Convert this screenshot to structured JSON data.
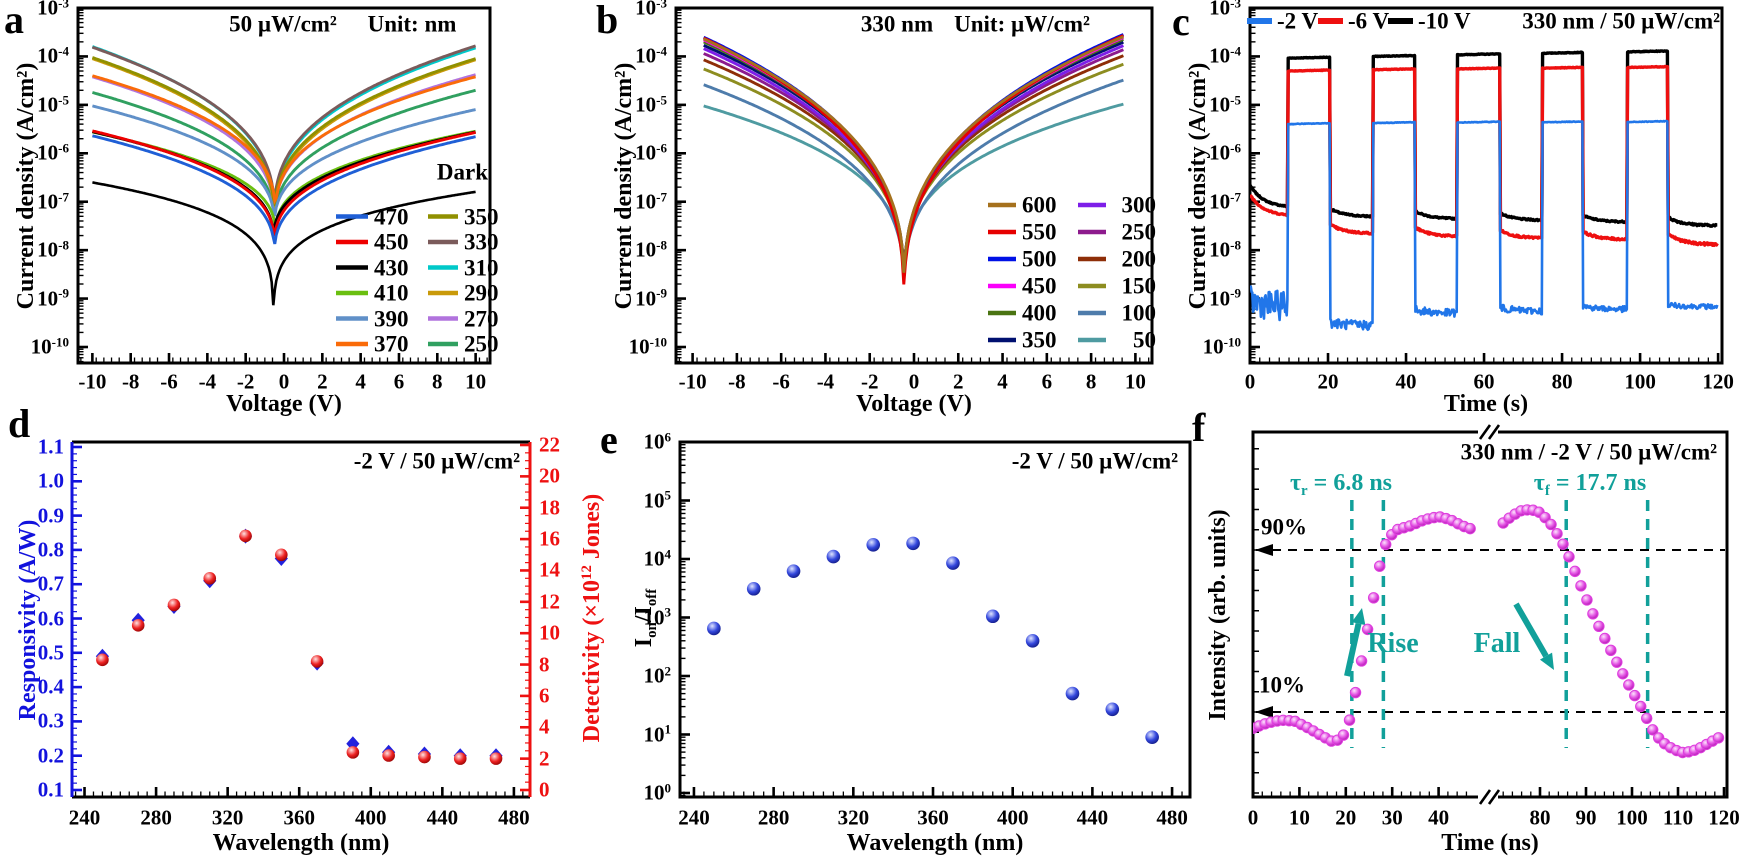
{
  "figure": {
    "bg": "#ffffff"
  },
  "chart_data": [
    {
      "id": "a",
      "type": "line-jv",
      "panel_label": "a",
      "title_power": "50 µW/cm²",
      "title_unit": "Unit: nm",
      "xlabel": "Voltage (V)",
      "ylabel": "Current density (A/cm²)",
      "x_ticks": [
        -10,
        -8,
        -6,
        -4,
        -2,
        0,
        2,
        4,
        6,
        8,
        10
      ],
      "y_exponents": [
        -3,
        -4,
        -5,
        -6,
        -7,
        -8,
        -9,
        -10
      ],
      "x_range": [
        -10,
        10
      ],
      "dark_label": "Dark",
      "series": [
        {
          "label": "470",
          "color": "#1f5fd6",
          "j_neg": 2.3e-06,
          "j_min": 8e-09,
          "j_pos": 2.2e-06,
          "v0": -0.5,
          "p": 0.38
        },
        {
          "label": "450",
          "color": "#ee0000",
          "j_neg": 2.9e-06,
          "j_min": 1.2e-08,
          "j_pos": 2.7e-06,
          "v0": -0.5,
          "p": 0.38
        },
        {
          "label": "430",
          "color": "#000000",
          "j_neg": 2.8e-06,
          "j_min": 1.5e-08,
          "j_pos": 2.75e-06,
          "v0": -0.55,
          "p": 0.38
        },
        {
          "label": "410",
          "color": "#6abf10",
          "j_neg": 2.75e-06,
          "j_min": 2e-08,
          "j_pos": 2.85e-06,
          "v0": -0.45,
          "p": 0.38
        },
        {
          "label": "390",
          "color": "#6090c8",
          "j_neg": 9.5e-06,
          "j_min": 3e-08,
          "j_pos": 8e-06,
          "v0": -0.5,
          "p": 0.38
        },
        {
          "label": "370",
          "color": "#fa6b09",
          "j_neg": 4e-05,
          "j_min": 5e-08,
          "j_pos": 3.8e-05,
          "v0": -0.45,
          "p": 0.38
        },
        {
          "label": "350",
          "color": "#909000",
          "j_neg": 9.5e-05,
          "j_min": 4e-08,
          "j_pos": 9e-05,
          "v0": -0.5,
          "p": 0.38
        },
        {
          "label": "330",
          "color": "#7b5b5b",
          "j_neg": 0.000155,
          "j_min": 5e-08,
          "j_pos": 0.000165,
          "v0": -0.5,
          "p": 0.38
        },
        {
          "label": "310",
          "color": "#00c9c9",
          "j_neg": 0.00016,
          "j_min": 4.5e-08,
          "j_pos": 0.00015,
          "v0": -0.5,
          "p": 0.38
        },
        {
          "label": "290",
          "color": "#c99a0a",
          "j_neg": 9e-05,
          "j_min": 3.5e-08,
          "j_pos": 8.5e-05,
          "v0": -0.5,
          "p": 0.38
        },
        {
          "label": "270",
          "color": "#b173dd",
          "j_neg": 3.8e-05,
          "j_min": 4e-08,
          "j_pos": 4.2e-05,
          "v0": -0.5,
          "p": 0.38
        },
        {
          "label": "250",
          "color": "#30a060",
          "j_neg": 1.8e-05,
          "j_min": 3e-08,
          "j_pos": 2e-05,
          "v0": -0.5,
          "p": 0.38
        },
        {
          "label": "Dark",
          "color": "#000000",
          "j_neg": 2.5e-07,
          "j_min": 1e-10,
          "j_pos": 1.6e-07,
          "v0": -0.55,
          "p": 0.2
        }
      ],
      "legend_col1": [
        "470",
        "450",
        "430",
        "410",
        "390",
        "370"
      ],
      "legend_col2": [
        "350",
        "330",
        "310",
        "290",
        "270",
        "250"
      ]
    },
    {
      "id": "b",
      "type": "line-jv",
      "panel_label": "b",
      "title_mono": "330 nm",
      "title_unit": "Unit: µW/cm²",
      "xlabel": "Voltage (V)",
      "ylabel": "Current density (A/cm²)",
      "x_ticks": [
        -10,
        -8,
        -6,
        -4,
        -2,
        0,
        2,
        4,
        6,
        8,
        10
      ],
      "y_exponents": [
        -3,
        -4,
        -5,
        -6,
        -7,
        -8,
        -9,
        -10
      ],
      "x_range": [
        -9.5,
        9.5
      ],
      "series": [
        {
          "label": "600",
          "color": "#a5711d",
          "j_neg": 0.00023,
          "j_min": 1.2e-09,
          "j_pos": 0.00026,
          "v0": -0.45,
          "p": 0.36
        },
        {
          "label": "550",
          "color": "#e60000",
          "j_neg": 0.00024,
          "j_min": 6.5e-10,
          "j_pos": 0.000275,
          "v0": -0.45,
          "p": 0.36
        },
        {
          "label": "500",
          "color": "#0011e6",
          "j_neg": 0.00025,
          "j_min": 1e-09,
          "j_pos": 0.00029,
          "v0": -0.45,
          "p": 0.36
        },
        {
          "label": "450",
          "color": "#fb00fb",
          "j_neg": 0.00022,
          "j_min": 9e-10,
          "j_pos": 0.00025,
          "v0": -0.45,
          "p": 0.36
        },
        {
          "label": "400",
          "color": "#4a7412",
          "j_neg": 0.0002,
          "j_min": 1.1e-09,
          "j_pos": 0.00023,
          "v0": -0.45,
          "p": 0.36
        },
        {
          "label": "350",
          "color": "#001070",
          "j_neg": 0.00017,
          "j_min": 1.3e-09,
          "j_pos": 0.0002,
          "v0": -0.45,
          "p": 0.36
        },
        {
          "label": "300",
          "color": "#7d1ee8",
          "j_neg": 0.000145,
          "j_min": 1e-09,
          "j_pos": 0.00017,
          "v0": -0.45,
          "p": 0.36
        },
        {
          "label": "250",
          "color": "#8d1b8d",
          "j_neg": 0.000115,
          "j_min": 1.2e-09,
          "j_pos": 0.00014,
          "v0": -0.45,
          "p": 0.36
        },
        {
          "label": "200",
          "color": "#8e2e08",
          "j_neg": 8.5e-05,
          "j_min": 1.4e-09,
          "j_pos": 0.000105,
          "v0": -0.45,
          "p": 0.36
        },
        {
          "label": "150",
          "color": "#8d8d20",
          "j_neg": 5.5e-05,
          "j_min": 1.6e-09,
          "j_pos": 7e-05,
          "v0": -0.45,
          "p": 0.36
        },
        {
          "label": "100",
          "color": "#4e7cab",
          "j_neg": 2.6e-05,
          "j_min": 1.3e-09,
          "j_pos": 3.3e-05,
          "v0": -0.45,
          "p": 0.36
        },
        {
          "label": "50",
          "color": "#4f9ba1",
          "j_neg": 9.5e-06,
          "j_min": 1.8e-09,
          "j_pos": 1.05e-05,
          "v0": -0.45,
          "p": 0.33
        }
      ],
      "legend_col1": [
        "600",
        "550",
        "500",
        "450",
        "400",
        "350"
      ],
      "legend_col2": [
        "300",
        "250",
        "200",
        "150",
        "100",
        "50"
      ]
    },
    {
      "id": "c",
      "type": "pulses",
      "panel_label": "c",
      "title": "330 nm / 50 µW/cm²",
      "xlabel": "Time (s)",
      "ylabel": "Current density (A/cm²)",
      "x_ticks": [
        0,
        20,
        40,
        60,
        80,
        100,
        120
      ],
      "y_exponents": [
        -3,
        -4,
        -5,
        -6,
        -7,
        -8,
        -9,
        -10
      ],
      "pulses_on": [
        [
          9.7,
          20.5
        ],
        [
          31.5,
          42.3
        ],
        [
          53.1,
          64.1
        ],
        [
          74.9,
          85.4
        ],
        [
          96.7,
          107.2
        ]
      ],
      "series": [
        {
          "label": "-2 V",
          "color": "#2176e9",
          "width": 2.6,
          "on_levels": [
            4e-06,
            4.2e-06,
            4.3e-06,
            4.35e-06,
            4.4e-06
          ],
          "gaps": [
            [
              9e-10,
              7e-10
            ],
            [
              3.2e-10,
              2.8e-10
            ],
            [
              6e-10,
              5e-10
            ],
            [
              6.5e-10,
              5.5e-10
            ],
            [
              7e-10,
              6e-10
            ],
            [
              7.5e-10,
              6.8e-10
            ]
          ],
          "noise_gap": [
            0.3,
            0.1,
            0.08,
            0.07,
            0.06,
            0.05
          ]
        },
        {
          "label": "-6 V",
          "color": "#ee1010",
          "width": 3.4,
          "on_levels": [
            5e-05,
            5.3e-05,
            5.5e-05,
            5.7e-05,
            5.9e-05
          ],
          "gaps": [
            [
              1.4e-07,
              5e-08
            ],
            [
              3.4e-08,
              2.2e-08
            ],
            [
              3e-08,
              1.9e-08
            ],
            [
              2.6e-08,
              1.75e-08
            ],
            [
              2.4e-08,
              1.65e-08
            ],
            [
              2.2e-08,
              1.3e-08
            ]
          ],
          "noise_gap": [
            0.015,
            0.02,
            0.02,
            0.02,
            0.02,
            0.025
          ]
        },
        {
          "label": "-10 V",
          "color": "#000000",
          "width": 3.4,
          "on_levels": [
            9.2e-05,
            0.0001,
            0.000108,
            0.000116,
            0.000124
          ],
          "gaps": [
            [
              2.2e-07,
              7.5e-08
            ],
            [
              7.2e-08,
              4.9e-08
            ],
            [
              6.4e-08,
              4.4e-08
            ],
            [
              5.8e-08,
              4.1e-08
            ],
            [
              5.2e-08,
              3.8e-08
            ],
            [
              4.8e-08,
              3.2e-08
            ]
          ],
          "noise_gap": [
            0.012,
            0.015,
            0.015,
            0.015,
            0.015,
            0.02
          ]
        }
      ]
    },
    {
      "id": "d",
      "type": "scatter-dual",
      "panel_label": "d",
      "annotation": "-2 V / 50 µW/cm²",
      "xlabel": "Wavelength (nm)",
      "ylabel_left": "Responsivity (A/W)",
      "ylabel_right_parts": [
        {
          "t": "Detectivity (×10"
        },
        {
          "t": "12",
          "s": "sup"
        },
        {
          "t": " Jones)"
        }
      ],
      "x_ticks": [
        240,
        280,
        320,
        360,
        400,
        440,
        480
      ],
      "y_left_min": 0.1,
      "y_left_max": 1.1,
      "y_left_step": 0.1,
      "y_right_min": 0,
      "y_right_max": 22,
      "y_right_step": 2,
      "wavelengths": [
        250,
        270,
        290,
        310,
        330,
        350,
        370,
        390,
        410,
        430,
        450,
        470
      ],
      "responsivity": [
        0.49,
        0.595,
        0.635,
        0.71,
        0.84,
        0.775,
        0.47,
        0.235,
        0.21,
        0.205,
        0.2,
        0.2
      ],
      "detectivity": [
        8.3,
        10.5,
        11.8,
        13.5,
        16.2,
        15.0,
        8.2,
        2.4,
        2.2,
        2.1,
        2.0,
        2.0
      ],
      "color_left": "#1212dd",
      "color_right": "#ee1111"
    },
    {
      "id": "e",
      "type": "scatter-log",
      "panel_label": "e",
      "annotation": "-2 V / 50 µW/cm²",
      "xlabel": "Wavelength (nm)",
      "ylabel_parts": [
        {
          "t": "I"
        },
        {
          "t": "on",
          "s": "sub"
        },
        {
          "t": "/I"
        },
        {
          "t": "off",
          "s": "sub"
        }
      ],
      "x_ticks": [
        240,
        280,
        320,
        360,
        400,
        440,
        480
      ],
      "y_exponents": [
        6,
        5,
        4,
        3,
        2,
        1,
        0
      ],
      "wavelengths": [
        250,
        270,
        290,
        310,
        330,
        350,
        370,
        390,
        410,
        430,
        450,
        470
      ],
      "ratio": [
        650,
        3100,
        6200,
        11000,
        17500,
        18500,
        8500,
        1050,
        400,
        50,
        27,
        9
      ],
      "color": "#2b3bd0"
    },
    {
      "id": "f",
      "type": "transient",
      "panel_label": "f",
      "title": "330 nm / -2 V / 50 µW/cm²",
      "xlabel": "Time (ns)",
      "ylabel": "Intensity (arb. units)",
      "x_ticks_left": [
        0,
        10,
        20,
        30,
        40
      ],
      "x_ticks_right": [
        80,
        90,
        100,
        110,
        120
      ],
      "tau_rise_parts": [
        {
          "t": "τ"
        },
        {
          "t": "r",
          "s": "sub"
        },
        {
          "t": " = 6.8 ns"
        }
      ],
      "tau_fall_parts": [
        {
          "t": "τ"
        },
        {
          "t": "f",
          "s": "sub"
        },
        {
          "t": " = 17.7 ns"
        }
      ],
      "pct90": "90%",
      "pct10": "10%",
      "rise_label": "Rise",
      "fall_label": "Fall",
      "marker_color": "#de3ede",
      "accent_color": "#11a09a",
      "guides": {
        "rise_t": [
          21.3,
          28.1
        ],
        "fall_t": [
          85.7,
          103.4
        ],
        "levels": [
          0.9,
          0.1
        ]
      },
      "curve_left": [
        [
          0,
          0.02
        ],
        [
          3,
          0.045
        ],
        [
          6,
          0.06
        ],
        [
          9,
          0.055
        ],
        [
          12,
          0.02
        ],
        [
          15,
          -0.02
        ],
        [
          17,
          -0.045
        ],
        [
          19,
          -0.035
        ],
        [
          20.3,
          0.02
        ],
        [
          21.3,
          0.1
        ],
        [
          22.3,
          0.22
        ],
        [
          23.3,
          0.34
        ],
        [
          24.3,
          0.46
        ],
        [
          25.3,
          0.58
        ],
        [
          26.3,
          0.7
        ],
        [
          27.2,
          0.81
        ],
        [
          28.1,
          0.9
        ],
        [
          29.2,
          0.96
        ],
        [
          31,
          1.0
        ],
        [
          34,
          1.02
        ],
        [
          37,
          1.05
        ],
        [
          40,
          1.065
        ],
        [
          42.5,
          1.05
        ],
        [
          45,
          1.02
        ],
        [
          47.5,
          1.0
        ]
      ],
      "curve_right": [
        [
          71.8,
          1.03
        ],
        [
          74,
          1.07
        ],
        [
          76,
          1.095
        ],
        [
          78,
          1.1
        ],
        [
          80,
          1.085
        ],
        [
          82,
          1.04
        ],
        [
          84,
          0.97
        ],
        [
          85.7,
          0.9
        ],
        [
          87.5,
          0.8
        ],
        [
          89.5,
          0.69
        ],
        [
          91.5,
          0.585
        ],
        [
          93.5,
          0.49
        ],
        [
          95.5,
          0.4
        ],
        [
          97.5,
          0.31
        ],
        [
          99.5,
          0.225
        ],
        [
          101.5,
          0.145
        ],
        [
          103.4,
          0.06
        ],
        [
          105,
          -0.01
        ],
        [
          107,
          -0.055
        ],
        [
          109,
          -0.085
        ],
        [
          111,
          -0.1
        ],
        [
          113,
          -0.095
        ],
        [
          115,
          -0.075
        ],
        [
          117,
          -0.05
        ],
        [
          119,
          -0.025
        ],
        [
          120,
          -0.015
        ]
      ]
    }
  ]
}
